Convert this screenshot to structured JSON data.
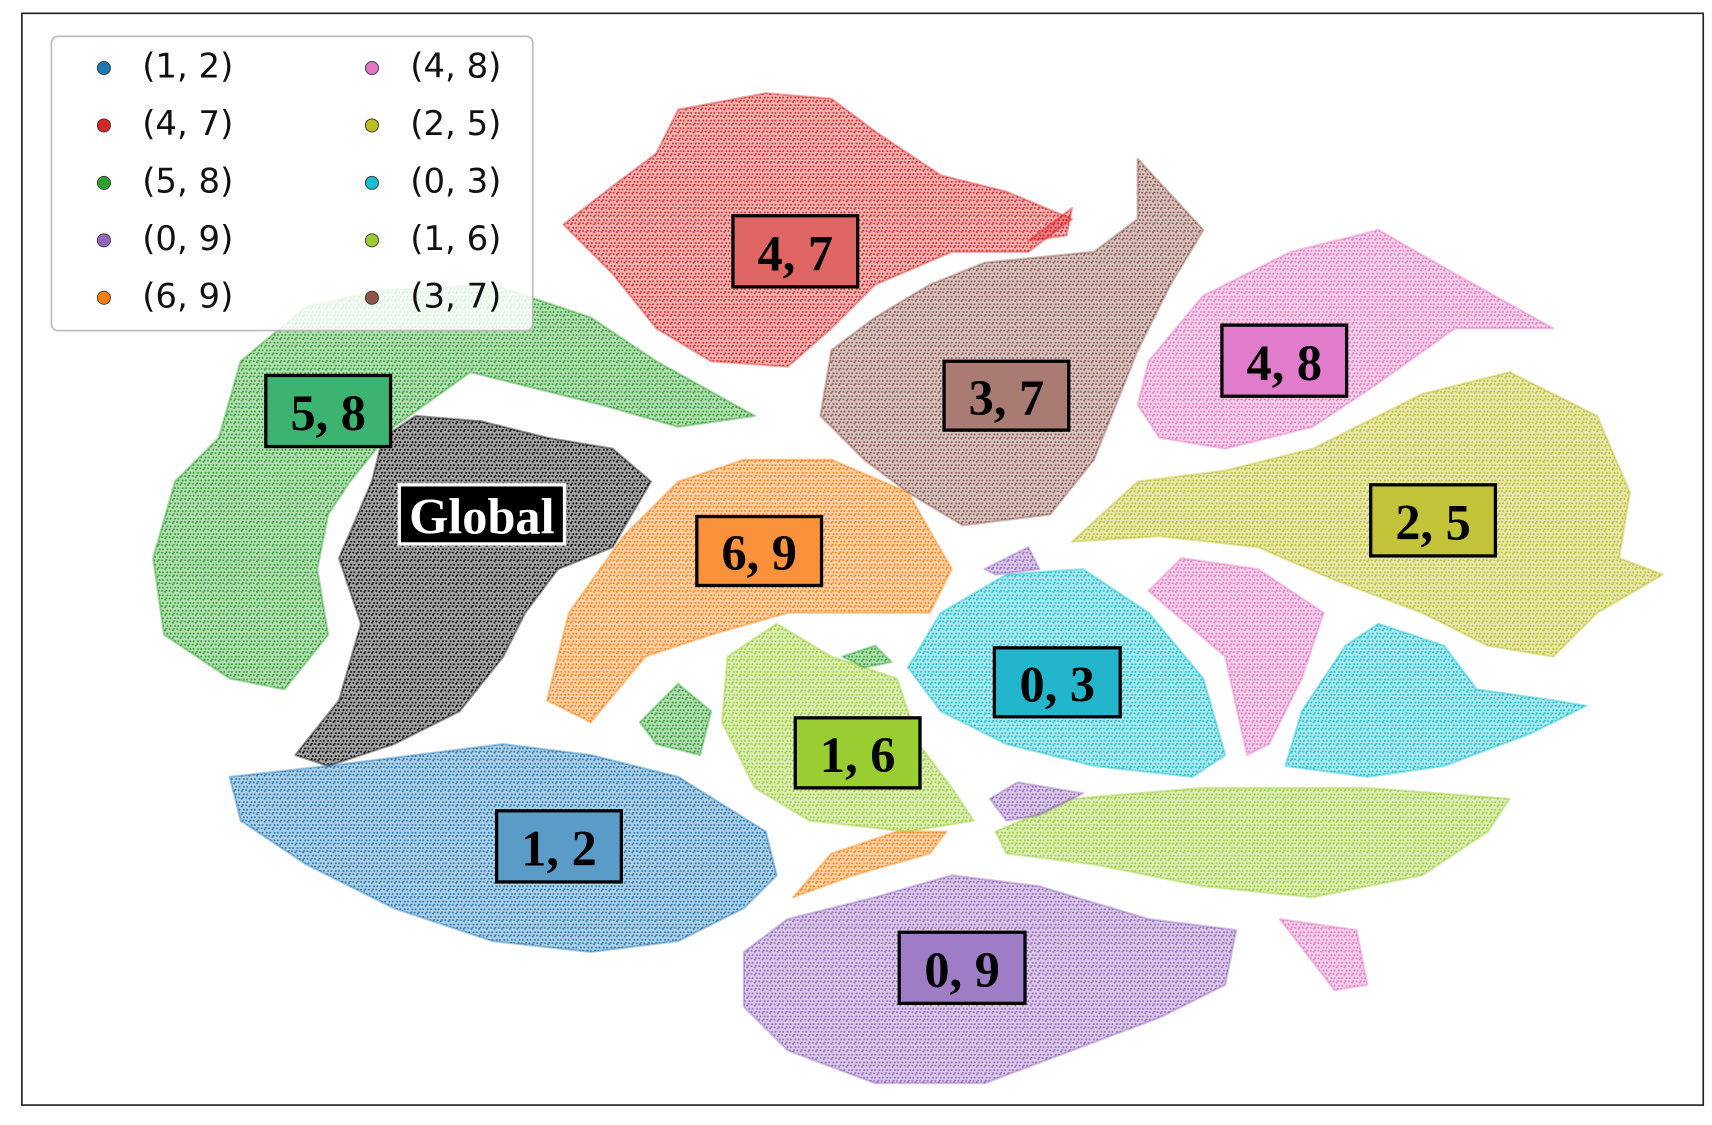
{
  "chart_data": {
    "type": "scatter",
    "series": [
      {
        "name": "(1, 2)",
        "color": "#1f77b4"
      },
      {
        "name": "(4, 7)",
        "color": "#d62728"
      },
      {
        "name": "(5, 8)",
        "color": "#2ca02c"
      },
      {
        "name": "(0, 9)",
        "color": "#9467bd"
      },
      {
        "name": "(6, 9)",
        "color": "#ff7f0e"
      },
      {
        "name": "(4, 8)",
        "color": "#e377c2"
      },
      {
        "name": "(2, 5)",
        "color": "#bcbd22"
      },
      {
        "name": "(0, 3)",
        "color": "#17becf"
      },
      {
        "name": "(1, 6)",
        "color": "#9acd32"
      },
      {
        "name": "(3, 7)",
        "color": "#8c564b"
      }
    ],
    "annotations": [
      {
        "text": "4, 7",
        "color": "#e06666"
      },
      {
        "text": "3, 7",
        "color": "#a97b72"
      },
      {
        "text": "4, 8",
        "color": "#e07ccb"
      },
      {
        "text": "5, 8",
        "color": "#3cb371"
      },
      {
        "text": "Global",
        "color": "#000000"
      },
      {
        "text": "2, 5",
        "color": "#c4c43a"
      },
      {
        "text": "6, 9",
        "color": "#f9923a"
      },
      {
        "text": "0, 3",
        "color": "#22b5cc"
      },
      {
        "text": "1, 6",
        "color": "#9acd32"
      },
      {
        "text": "1, 2",
        "color": "#5b9bc8"
      },
      {
        "text": "0, 9",
        "color": "#9e7dc6"
      }
    ],
    "legend": "upper left"
  }
}
